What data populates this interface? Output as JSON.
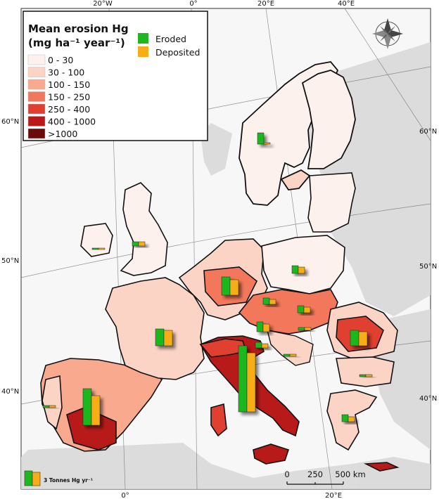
{
  "legend": {
    "title_line1": "Mean erosion Hg",
    "title_line2": "(mg ha⁻¹ year⁻¹)",
    "classes": [
      {
        "label": "0 - 30",
        "color": "#fdf1ee"
      },
      {
        "label": "30 - 100",
        "color": "#fbd4c6"
      },
      {
        "label": "100 - 150",
        "color": "#f9a98e"
      },
      {
        "label": "150 - 250",
        "color": "#f3775a"
      },
      {
        "label": "250 - 400",
        "color": "#e0402f"
      },
      {
        "label": "400 - 1000",
        "color": "#b81a1a"
      },
      {
        "label": ">1000",
        "color": "#6b0a0a"
      }
    ],
    "bars": [
      {
        "label": "Eroded",
        "color": "#1fb71f"
      },
      {
        "label": "Deposited",
        "color": "#f7ad18"
      }
    ]
  },
  "graticule": {
    "top": [
      "20°W",
      "0°",
      "20°E",
      "40°E"
    ],
    "bottom": [
      "0°",
      "20°E"
    ],
    "left": [
      "60°N",
      "50°N",
      "40°N"
    ],
    "right": [
      "60°N",
      "50°N",
      "40°N"
    ]
  },
  "scale_bar": {
    "labels": [
      "0",
      "250",
      "500 km"
    ]
  },
  "bar_key_label": "3 Tonnes Hg yr⁻¹"
}
